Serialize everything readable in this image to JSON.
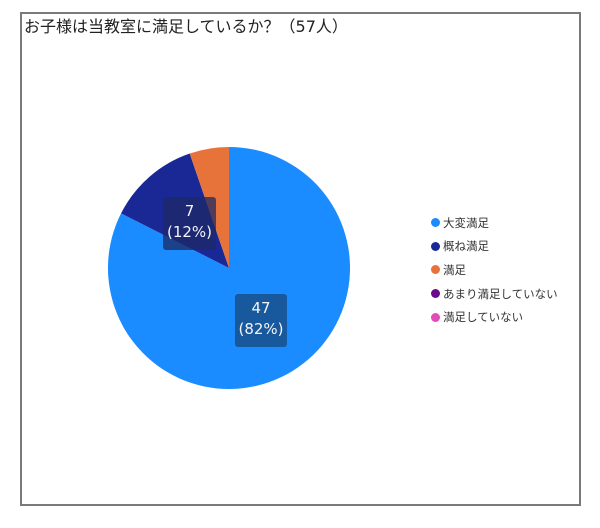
{
  "chart_data": {
    "type": "pie",
    "title": "お子様は当教室に満足しているか？（57人）",
    "total": 57,
    "categories": [
      "大変満足",
      "概ね満足",
      "満足",
      "あまり満足していない",
      "満足していない"
    ],
    "values": [
      47,
      7,
      3,
      0,
      0
    ],
    "percentages": [
      82,
      12,
      5,
      0,
      0
    ],
    "colors": [
      "#1a8cff",
      "#1a2896",
      "#e8733a",
      "#6a0a8a",
      "#e04cb8"
    ],
    "data_labels": [
      {
        "value": "47",
        "percent": "(82%)"
      },
      {
        "value": "7",
        "percent": "(12%)"
      }
    ],
    "legend_position": "right",
    "start_angle": "12 o'clock, clockwise"
  },
  "labels": {
    "slice0": {
      "value": "47",
      "percent": "(82%)"
    },
    "slice1": {
      "value": "7",
      "percent": "(12%)"
    }
  },
  "legend": [
    {
      "label": "大変満足",
      "color": "#1a8cff"
    },
    {
      "label": "概ね満足",
      "color": "#1a2896"
    },
    {
      "label": "満足",
      "color": "#e8733a"
    },
    {
      "label": "あまり満足していない",
      "color": "#6a0a8a"
    },
    {
      "label": "満足していない",
      "color": "#e04cb8"
    }
  ]
}
